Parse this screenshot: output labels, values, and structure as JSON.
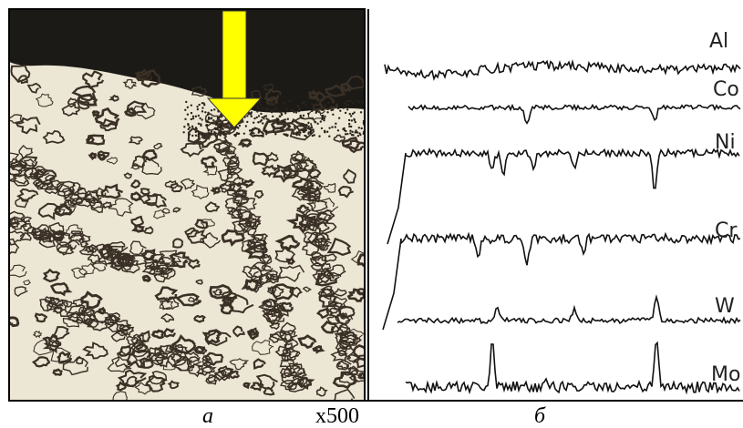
{
  "figure": {
    "panel_b_labels": [
      "Al",
      "Co",
      "Ni",
      "Cr",
      "W",
      "Mo"
    ],
    "captions": {
      "left": "а",
      "magnification": "x500",
      "right": "б"
    }
  }
}
